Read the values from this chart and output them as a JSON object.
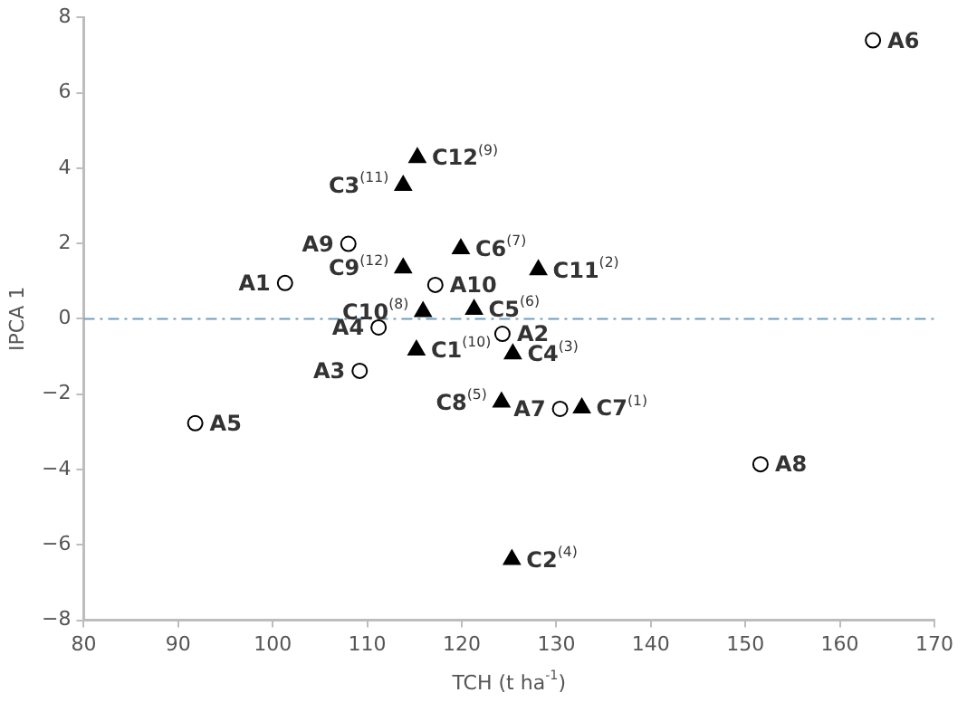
{
  "chart_data": {
    "type": "scatter",
    "xlabel": "TCH (t ha$^{-1}$)",
    "ylabel": "IPCA 1",
    "xlim": [
      80,
      170
    ],
    "xticks": [
      80,
      90,
      100,
      110,
      120,
      130,
      140,
      150,
      160,
      170
    ],
    "ylim": [
      -8,
      8
    ],
    "yticks": [
      -8,
      -6,
      -4,
      -2,
      0,
      2,
      4,
      6,
      8
    ],
    "grid": false,
    "legend": false,
    "series": [
      {
        "color": "#000000",
        "marker": "circle",
        "x": [
          101.3,
          124.3,
          109.2,
          111.2,
          91.8,
          163.5,
          130.4,
          151.6,
          108.0,
          117.2
        ],
        "values": [
          0.95,
          -0.4,
          -1.38,
          -0.23,
          -2.77,
          7.39,
          -2.39,
          -3.86,
          1.99,
          0.9
        ]
      },
      {
        "color": "#000000",
        "marker": "triangle",
        "x": [
          115.2,
          125.3,
          113.8,
          125.4,
          121.3,
          119.9,
          132.7,
          124.2,
          113.8,
          115.9,
          128.1,
          115.3
        ],
        "values": [
          -0.83,
          -6.39,
          3.54,
          -0.93,
          0.25,
          1.86,
          -2.37,
          -2.21,
          1.35,
          0.19,
          1.3,
          4.28
        ]
      }
    ],
    "ref_lines": [
      {
        "axis": "y",
        "value": 0,
        "color": "#6f9fbf",
        "line_style": "dashdot"
      }
    ],
    "annotations": [
      {
        "text": "A1",
        "x": 101.3,
        "y": 0.95
      },
      {
        "text": "A2",
        "x": 124.3,
        "y": -0.4
      },
      {
        "text": "A3",
        "x": 109.2,
        "y": -1.38
      },
      {
        "text": "A4",
        "x": 111.2,
        "y": -0.23
      },
      {
        "text": "A5",
        "x": 91.8,
        "y": -2.77
      },
      {
        "text": "A6",
        "x": 163.5,
        "y": 7.39
      },
      {
        "text": "A7",
        "x": 130.4,
        "y": -2.39
      },
      {
        "text": "A8",
        "x": 151.6,
        "y": -3.86
      },
      {
        "text": "A9",
        "x": 108.0,
        "y": 1.99
      },
      {
        "text": "A10",
        "x": 117.2,
        "y": 0.9
      },
      {
        "text": "C1$^{(10)}$",
        "x": 115.2,
        "y": -0.83
      },
      {
        "text": "C2$^{(4)}$",
        "x": 125.3,
        "y": -6.39
      },
      {
        "text": "C3$^{(11)}$",
        "x": 113.8,
        "y": 3.54
      },
      {
        "text": "C4$^{(3)}$",
        "x": 125.4,
        "y": -0.93
      },
      {
        "text": "C5$^{(6)}$",
        "x": 121.3,
        "y": 0.25
      },
      {
        "text": "C6$^{(7)}$",
        "x": 119.9,
        "y": 1.86
      },
      {
        "text": "C7$^{(1)}$",
        "x": 132.7,
        "y": -2.37
      },
      {
        "text": "C8$^{(5)}$",
        "x": 124.2,
        "y": -2.21
      },
      {
        "text": "C9$^{(12)}$",
        "x": 113.8,
        "y": 1.35
      },
      {
        "text": "C10$^{(8)}$",
        "x": 115.9,
        "y": 0.19
      },
      {
        "text": "C11$^{(2)}$",
        "x": 128.1,
        "y": 1.3
      },
      {
        "text": "C12$^{(9)}$",
        "x": 115.3,
        "y": 4.28
      }
    ]
  }
}
